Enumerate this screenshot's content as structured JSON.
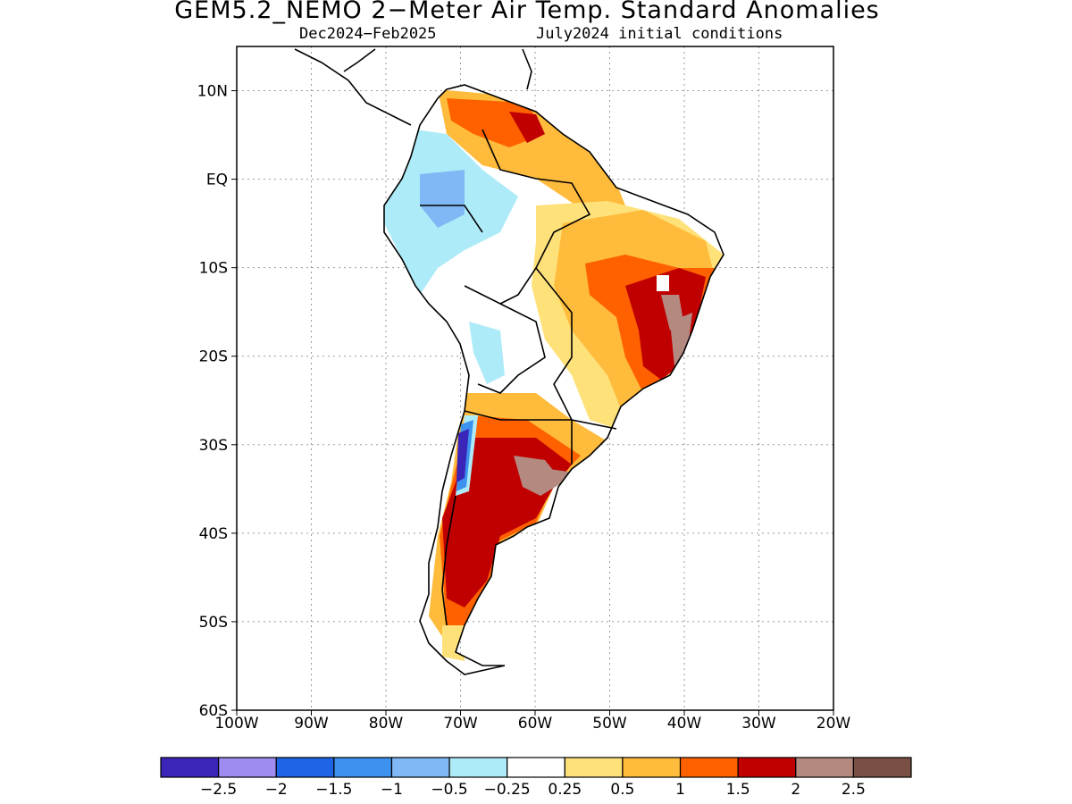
{
  "title": "GEM5.2_NEMO 2−Meter Air Temp. Standard Anomalies",
  "subtitle_left": "Dec2024−Feb2025",
  "subtitle_right": "July2024 initial conditions",
  "map": {
    "lon_range": [
      -100,
      -20
    ],
    "lat_range": [
      -60,
      15
    ],
    "lat_ticks": [
      "10N",
      "EQ",
      "10S",
      "20S",
      "30S",
      "40S",
      "50S",
      "60S"
    ],
    "lon_ticks": [
      "100W",
      "90W",
      "80W",
      "70W",
      "60W",
      "50W",
      "40W",
      "30W",
      "20W"
    ],
    "grid": "dotted"
  },
  "legend": {
    "colors": [
      "#3b24b8",
      "#9e8cf0",
      "#1d64e6",
      "#3d92f0",
      "#7fb8f5",
      "#aeebf8",
      "#ffffff",
      "#ffe17a",
      "#ffbb3c",
      "#ff6100",
      "#c00000",
      "#b48a80",
      "#7a5044"
    ],
    "labels": [
      "−2.5",
      "−2",
      "−1.5",
      "−1",
      "−0.5",
      "−0.25",
      "0.25",
      "0.5",
      "1",
      "1.5",
      "2",
      "2.5"
    ]
  }
}
